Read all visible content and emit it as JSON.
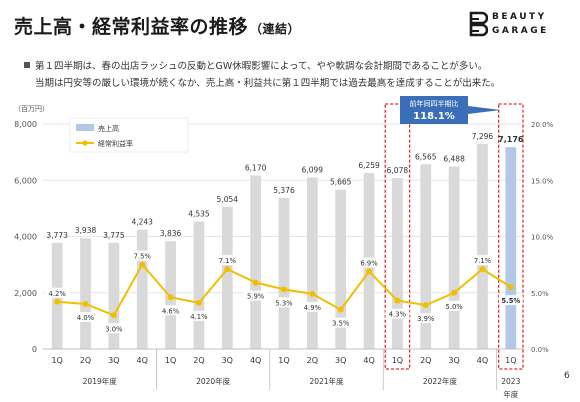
{
  "slide": {
    "title": "売上高・経常利益率の推移",
    "title_sub": "（連結）",
    "logo_line1": "BEAUTY",
    "logo_line2": "GARAGE",
    "bullet_line1": "第１四半期は、春の出店ラッシュの反動とGW休暇影響によって、やや軟調な会計期間であることが多い。",
    "bullet_line2": "当期は円安等の厳しい環境が続くなか、売上高・利益共に第１四半期では過去最高を達成することが出来た。",
    "page_number": "6"
  },
  "chart_data": {
    "type": "bar",
    "unit_label": "（百万円）",
    "categories": [
      "1Q",
      "2Q",
      "3Q",
      "4Q",
      "1Q",
      "2Q",
      "3Q",
      "4Q",
      "1Q",
      "2Q",
      "3Q",
      "4Q",
      "1Q",
      "2Q",
      "3Q",
      "4Q",
      "1Q"
    ],
    "fiscal_years": [
      {
        "label": "2019年度",
        "start": 0,
        "end": 3
      },
      {
        "label": "2020年度",
        "start": 4,
        "end": 7
      },
      {
        "label": "2021年度",
        "start": 8,
        "end": 11
      },
      {
        "label": "2022年度",
        "start": 12,
        "end": 15
      },
      {
        "label": "2023",
        "label2": "年度",
        "start": 16,
        "end": 16
      }
    ],
    "series": [
      {
        "name": "売上高",
        "type": "bar",
        "axis": "left",
        "values": [
          3773,
          3938,
          3775,
          4243,
          3836,
          4535,
          5054,
          6170,
          5376,
          6099,
          5665,
          6259,
          6078,
          6565,
          6488,
          7296,
          7176
        ],
        "labels": [
          "3,773",
          "3,938",
          "3,775",
          "4,243",
          "3,836",
          "4,535",
          "5,054",
          "6,170",
          "5,376",
          "6,099",
          "5,665",
          "6,259",
          "6,078",
          "6,565",
          "6,488",
          "7,296",
          "7,176"
        ]
      },
      {
        "name": "経常利益率",
        "type": "line",
        "axis": "right",
        "values": [
          4.2,
          4.0,
          3.0,
          7.5,
          4.6,
          4.1,
          7.1,
          5.9,
          5.3,
          4.9,
          3.5,
          6.9,
          4.3,
          3.9,
          5.0,
          7.1,
          5.5
        ],
        "labels": [
          "4.2%",
          "4.0%",
          "3.0%",
          "7.5%",
          "4.6%",
          "4.1%",
          "7.1%",
          "5.9%",
          "5.3%",
          "4.9%",
          "3.5%",
          "6.9%",
          "4.3%",
          "3.9%",
          "5.0%",
          "7.1%",
          "5.5%"
        ]
      }
    ],
    "y_left": {
      "min": 0,
      "max": 8000,
      "ticks": [
        0,
        2000,
        4000,
        6000,
        8000
      ],
      "tick_labels": [
        "0",
        "2,000",
        "4,000",
        "6,000",
        "8,000"
      ]
    },
    "y_right": {
      "min": 0,
      "max": 20,
      "ticks": [
        0,
        5,
        10,
        15,
        20
      ],
      "tick_labels": [
        "0.0%",
        "5.0%",
        "10.0%",
        "15.0%",
        "20.0%"
      ]
    },
    "highlight_indices": [
      12,
      16
    ],
    "annotation": {
      "label": "前年同四半期比",
      "value": "118.1%"
    },
    "legend_position": "top-left",
    "colors": {
      "bar": "#d9d9d9",
      "bar_highlight": "#b4c7e7",
      "line": "#f0c000",
      "highlight_frame": "#e32b2b",
      "annotation_bg": "#3a6fb8"
    }
  }
}
